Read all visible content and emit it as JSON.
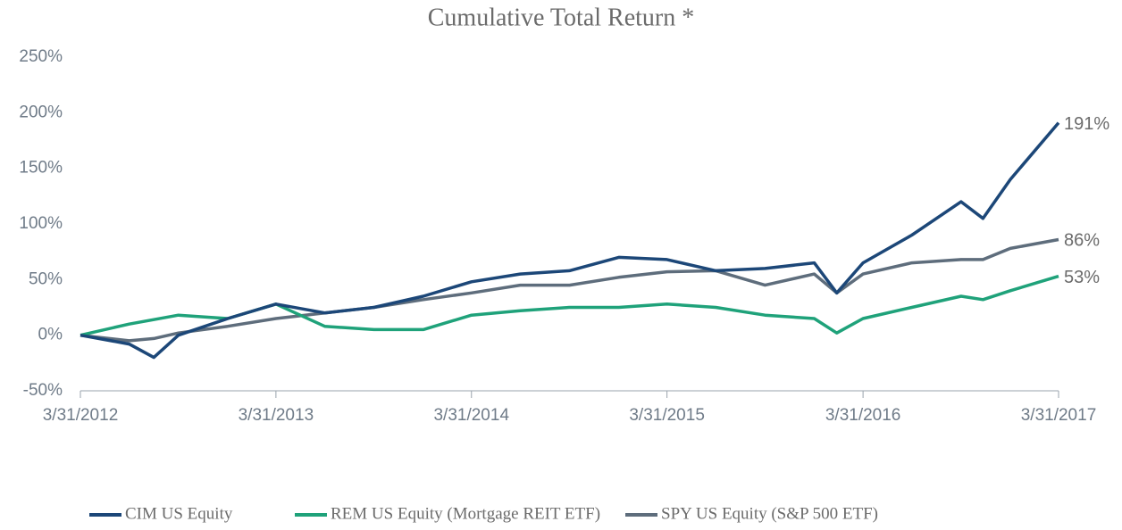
{
  "chart_data": {
    "type": "line",
    "title": "Cumulative Total Return *",
    "x": [
      "2012-03-31",
      "2012-06-30",
      "2012-08-15",
      "2012-09-30",
      "2012-12-31",
      "2013-03-31",
      "2013-06-30",
      "2013-09-30",
      "2013-12-31",
      "2014-03-31",
      "2014-06-30",
      "2014-09-30",
      "2014-12-31",
      "2015-03-31",
      "2015-06-30",
      "2015-09-30",
      "2015-12-31",
      "2016-02-11",
      "2016-03-31",
      "2016-06-30",
      "2016-09-30",
      "2016-11-10",
      "2016-12-31",
      "2017-03-31"
    ],
    "series": [
      {
        "name": "CIM US Equity",
        "color": "#1c4778",
        "values": [
          0,
          -8,
          -20,
          0,
          15,
          28,
          20,
          25,
          35,
          48,
          55,
          58,
          70,
          68,
          58,
          60,
          65,
          38,
          65,
          90,
          120,
          105,
          140,
          191
        ],
        "end_label": "191%"
      },
      {
        "name": "REM US Equity (Mortgage REIT ETF)",
        "color": "#1fa27a",
        "values": [
          0,
          10,
          14,
          18,
          15,
          28,
          8,
          5,
          5,
          18,
          22,
          25,
          25,
          28,
          25,
          18,
          15,
          2,
          15,
          25,
          35,
          32,
          40,
          53
        ],
        "end_label": "53%"
      },
      {
        "name": "SPY US Equity (S&P 500 ETF)",
        "color": "#5e6d7c",
        "values": [
          0,
          -5,
          -3,
          2,
          8,
          15,
          20,
          25,
          32,
          38,
          45,
          45,
          52,
          57,
          58,
          45,
          55,
          38,
          55,
          65,
          68,
          68,
          78,
          86
        ],
        "end_label": "86%"
      }
    ],
    "xticks": [
      {
        "value": "2012-03-31",
        "label": "3/31/2012"
      },
      {
        "value": "2013-03-31",
        "label": "3/31/2013"
      },
      {
        "value": "2014-03-31",
        "label": "3/31/2014"
      },
      {
        "value": "2015-03-31",
        "label": "3/31/2015"
      },
      {
        "value": "2016-03-31",
        "label": "3/31/2016"
      },
      {
        "value": "2017-03-31",
        "label": "3/31/2017"
      }
    ],
    "xlim": [
      "2012-03-31",
      "2017-03-31"
    ],
    "ylim": [
      -50,
      250
    ],
    "yticks": [
      {
        "value": -50,
        "label": "-50%"
      },
      {
        "value": 0,
        "label": "0%"
      },
      {
        "value": 50,
        "label": "50%"
      },
      {
        "value": 100,
        "label": "100%"
      },
      {
        "value": 150,
        "label": "150%"
      },
      {
        "value": 200,
        "label": "200%"
      },
      {
        "value": 250,
        "label": "250%"
      }
    ],
    "grid": false,
    "legend": "bottom"
  }
}
